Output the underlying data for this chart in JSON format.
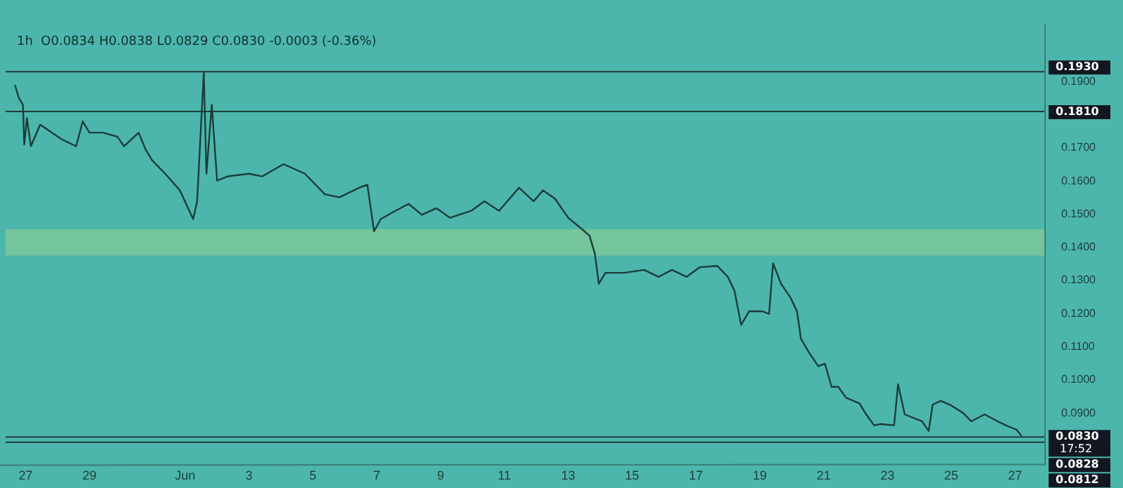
{
  "chart_data": {
    "type": "line",
    "title": "1h  O0.0834 H0.0838 L0.0829 C0.0830 -0.0003 (-0.36%)",
    "x": [
      "--05-26T16:00",
      "--05-26T19:00",
      "--05-26T22:00",
      "--05-26T23:00",
      "--05-27T01:00",
      "--05-27T04:00",
      "--05-27T11:00",
      "--05-28T03:00",
      "--05-28T14:00",
      "--05-28T19:00",
      "--05-29T00:00",
      "--05-29T10:00",
      "--05-29T21:00",
      "--05-30T02:00",
      "--05-30T13:00",
      "--05-30T18:00",
      "--05-30T23:00",
      "--05-31T09:00",
      "--05-31T20:00",
      "--06-01T06:00",
      "--06-01T09:00",
      "--06-01T14:00",
      "--06-01T16:00",
      "--06-01T20:00",
      "--06-02T00:00",
      "--06-02T08:00",
      "--06-03T00:00",
      "--06-03T10:00",
      "--06-04T02:00",
      "--06-04T18:00",
      "--06-05T09:00",
      "--06-05T20:00",
      "--06-06T11:00",
      "--06-06T17:00",
      "--06-06T22:00",
      "--06-07T03:00",
      "--06-07T14:00",
      "--06-08T00:00",
      "--06-08T10:00",
      "--06-08T21:00",
      "--06-09T07:00",
      "--06-09T23:00",
      "--06-10T09:00",
      "--06-10T20:00",
      "--06-11T11:00",
      "--06-11T22:00",
      "--06-12T05:00",
      "--06-12T14:00",
      "--06-13T00:00",
      "--06-13T10:00",
      "--06-13T16:00",
      "--06-13T20:00",
      "--06-13T23:00",
      "--06-14T04:00",
      "--06-14T18:00",
      "--06-15T09:00",
      "--06-15T20:00",
      "--06-16T06:00",
      "--06-16T17:00",
      "--06-17T03:00",
      "--06-17T16:00",
      "--06-18T00:00",
      "--06-18T05:00",
      "--06-18T10:00",
      "--06-18T16:00",
      "--06-19T02:00",
      "--06-19T07:00",
      "--06-19T10:00",
      "--06-19T16:00",
      "--06-19T23:00",
      "--06-20T04:00",
      "--06-20T07:00",
      "--06-20T13:00",
      "--06-20T20:00",
      "--06-21T01:00",
      "--06-21T06:00",
      "--06-21T11:00",
      "--06-21T17:00",
      "--06-22T03:00",
      "--06-22T08:00",
      "--06-22T14:00",
      "--06-22T19:00",
      "--06-23T05:00",
      "--06-23T08:00",
      "--06-23T13:00",
      "--06-24T02:00",
      "--06-24T07:00",
      "--06-24T10:00",
      "--06-24T16:00",
      "--06-24T23:00",
      "--06-25T09:00",
      "--06-25T15:00",
      "--06-26T01:00",
      "--06-26T11:00",
      "--06-26T17:00",
      "--06-27T01:00",
      "--06-27T05:00"
    ],
    "series": [
      {
        "color": "#1c3d39",
        "values": [
          0.189,
          0.185,
          0.183,
          0.171,
          0.179,
          0.1705,
          0.177,
          0.1726,
          0.1705,
          0.178,
          0.1746,
          0.1746,
          0.1734,
          0.1705,
          0.1746,
          0.1697,
          0.1663,
          0.1622,
          0.1572,
          0.1485,
          0.1539,
          0.193,
          0.1622,
          0.183,
          0.1601,
          0.1614,
          0.1622,
          0.1614,
          0.1651,
          0.1622,
          0.156,
          0.1551,
          0.158,
          0.1589,
          0.1448,
          0.1485,
          0.151,
          0.1531,
          0.1498,
          0.1518,
          0.1489,
          0.151,
          0.1539,
          0.151,
          0.158,
          0.1539,
          0.1572,
          0.1547,
          0.1489,
          0.1456,
          0.1435,
          0.1381,
          0.129,
          0.1323,
          0.1323,
          0.1332,
          0.1311,
          0.1332,
          0.1311,
          0.134,
          0.1344,
          0.1311,
          0.1269,
          0.1166,
          0.1207,
          0.1207,
          0.1199,
          0.1352,
          0.129,
          0.1249,
          0.1207,
          0.1124,
          0.1083,
          0.1041,
          0.1049,
          0.0979,
          0.0979,
          0.0946,
          0.0929,
          0.0896,
          0.0863,
          0.0867,
          0.0863,
          0.0987,
          0.0896,
          0.0875,
          0.0846,
          0.0925,
          0.0937,
          0.0925,
          0.09,
          0.0875,
          0.0896,
          0.0875,
          0.0863,
          0.085,
          0.083
        ]
      }
    ],
    "xlim": [
      "--05-26T09:00",
      "--06-27T22:00"
    ],
    "xticks": [
      {
        "value": "--05-27",
        "label": "27"
      },
      {
        "value": "--05-29",
        "label": "29"
      },
      {
        "value": "--06-01",
        "label": "Jun"
      },
      {
        "value": "--06-03",
        "label": "3"
      },
      {
        "value": "--06-05",
        "label": "5"
      },
      {
        "value": "--06-07",
        "label": "7"
      },
      {
        "value": "--06-09",
        "label": "9"
      },
      {
        "value": "--06-11",
        "label": "11"
      },
      {
        "value": "--06-13",
        "label": "13"
      },
      {
        "value": "--06-15",
        "label": "15"
      },
      {
        "value": "--06-17",
        "label": "17"
      },
      {
        "value": "--06-19",
        "label": "19"
      },
      {
        "value": "--06-21",
        "label": "21"
      },
      {
        "value": "--06-23",
        "label": "23"
      },
      {
        "value": "--06-25",
        "label": "25"
      },
      {
        "value": "--06-27",
        "label": "27"
      }
    ],
    "ylim": [
      0.0745,
      0.2075
    ],
    "yticks": [
      {
        "value": 0.09,
        "label": "0.0900"
      },
      {
        "value": 0.1,
        "label": "0.1000"
      },
      {
        "value": 0.11,
        "label": "0.1100"
      },
      {
        "value": 0.12,
        "label": "0.1200"
      },
      {
        "value": 0.13,
        "label": "0.1300"
      },
      {
        "value": 0.14,
        "label": "0.1400"
      },
      {
        "value": 0.15,
        "label": "0.1500"
      },
      {
        "value": 0.16,
        "label": "0.1600"
      },
      {
        "value": 0.17,
        "label": "0.1700"
      },
      {
        "value": 0.19,
        "label": "0.1900"
      }
    ],
    "ref_lines": [
      {
        "axis": "y",
        "value": 0.193,
        "label": "0.1930",
        "color": "#1c3d39"
      },
      {
        "axis": "y",
        "value": 0.181,
        "label": "0.1810",
        "color": "#1c3d39"
      },
      {
        "axis": "y",
        "value": 0.0828,
        "label": "0.0828",
        "color": "#1c3d39"
      },
      {
        "axis": "y",
        "value": 0.0812,
        "label": "0.0812",
        "color": "#1c3d39"
      }
    ],
    "bands": [
      {
        "axis": "y",
        "from": 0.1375,
        "to": 0.1455,
        "color": "#74c49c"
      }
    ],
    "annotations": [
      "0.0830",
      "17:52"
    ],
    "grid": false,
    "legend": false,
    "marker": "none",
    "line_style": "solid"
  }
}
